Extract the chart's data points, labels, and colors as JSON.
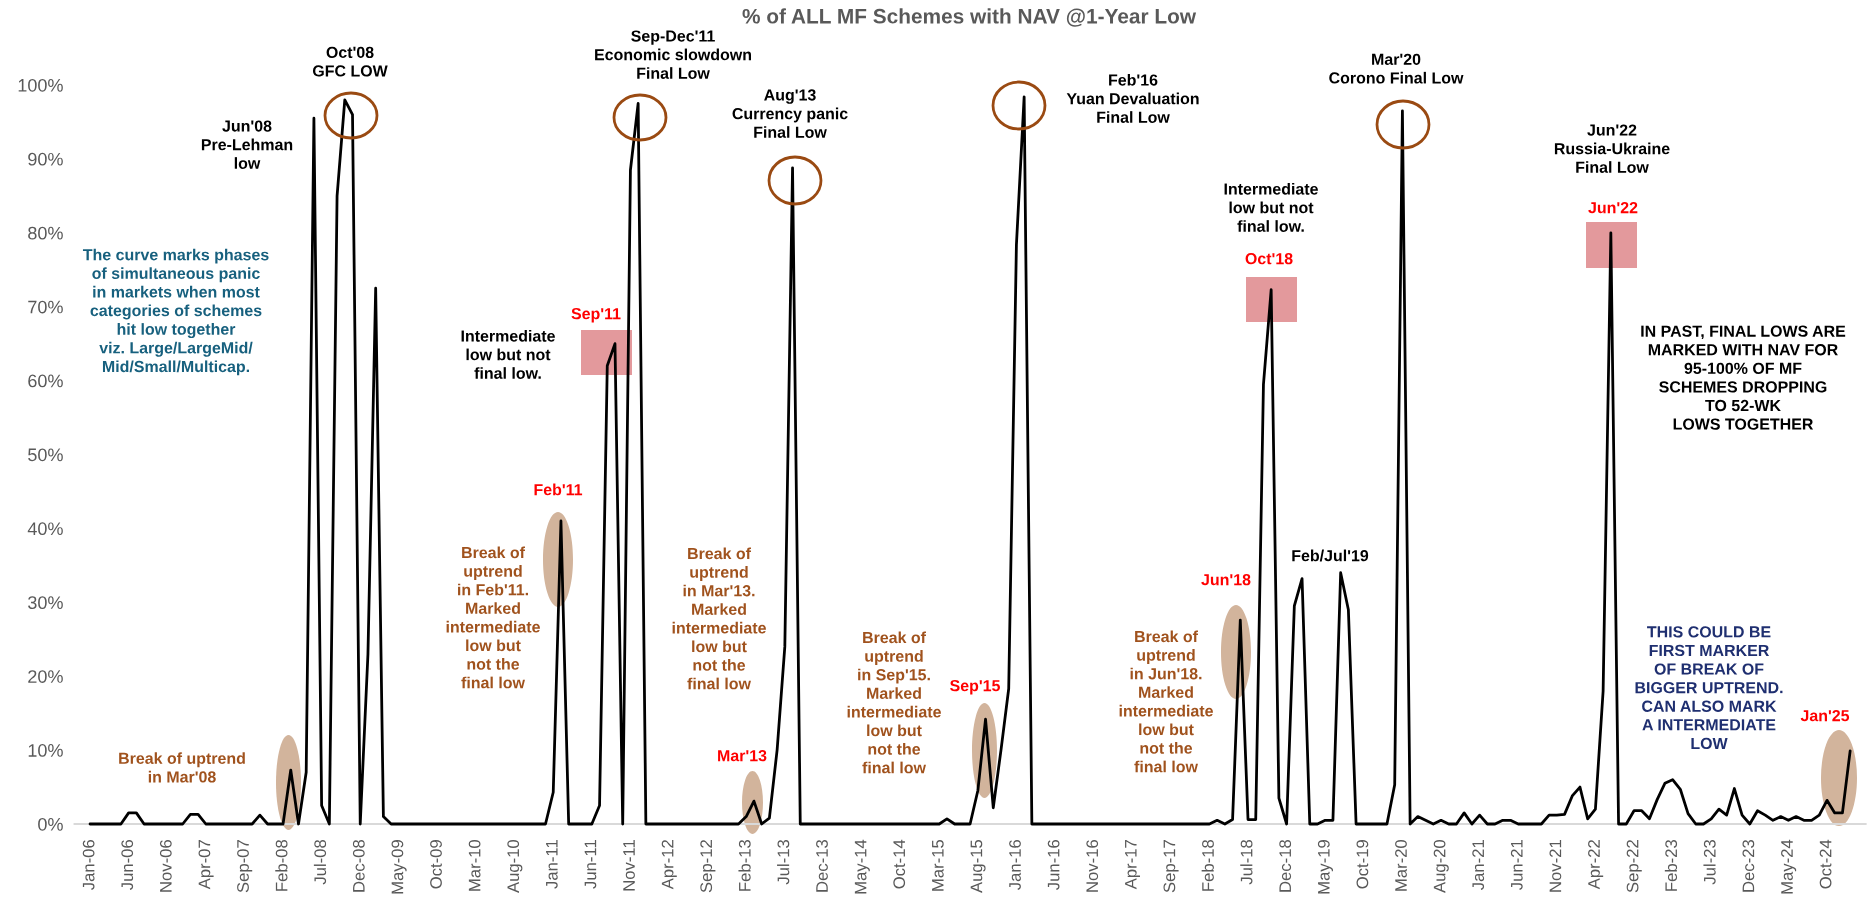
{
  "chart_data": {
    "type": "line",
    "title": "% of ALL MF Schemes with NAV @1-Year Low",
    "categories": [
      "Jan-06",
      null,
      null,
      null,
      null,
      "Jun-06",
      null,
      null,
      null,
      null,
      "Nov-06",
      null,
      null,
      null,
      null,
      "Apr-07",
      null,
      null,
      null,
      null,
      "Sep-07",
      null,
      null,
      null,
      null,
      "Feb-08",
      null,
      null,
      null,
      null,
      "Jul-08",
      null,
      null,
      null,
      null,
      "Dec-08",
      null,
      null,
      null,
      null,
      "May-09",
      null,
      null,
      null,
      null,
      "Oct-09",
      null,
      null,
      null,
      null,
      "Mar-10",
      null,
      null,
      null,
      null,
      "Aug-10",
      null,
      null,
      null,
      null,
      "Jan-11",
      null,
      null,
      null,
      null,
      "Jun-11",
      null,
      null,
      null,
      null,
      "Nov-11",
      null,
      null,
      null,
      null,
      "Apr-12",
      null,
      null,
      null,
      null,
      "Sep-12",
      null,
      null,
      null,
      null,
      "Feb-13",
      null,
      null,
      null,
      null,
      "Jul-13",
      null,
      null,
      null,
      null,
      "Dec-13",
      null,
      null,
      null,
      null,
      "May-14",
      null,
      null,
      null,
      null,
      "Oct-14",
      null,
      null,
      null,
      null,
      "Mar-15",
      null,
      null,
      null,
      null,
      "Aug-15",
      null,
      null,
      null,
      null,
      "Jan-16",
      null,
      null,
      null,
      null,
      "Jun-16",
      null,
      null,
      null,
      null,
      "Nov-16",
      null,
      null,
      null,
      null,
      "Apr-17",
      null,
      null,
      null,
      null,
      "Sep-17",
      null,
      null,
      null,
      null,
      "Feb-18",
      null,
      null,
      null,
      null,
      "Jul-18",
      null,
      null,
      null,
      null,
      "Dec-18",
      null,
      null,
      null,
      null,
      "May-19",
      null,
      null,
      null,
      null,
      "Oct-19",
      null,
      null,
      null,
      null,
      "Mar-20",
      null,
      null,
      null,
      null,
      "Aug-20",
      null,
      null,
      null,
      null,
      "Jan-21",
      null,
      null,
      null,
      null,
      "Jun-21",
      null,
      null,
      null,
      null,
      "Nov-21",
      null,
      null,
      null,
      null,
      "Apr-22",
      null,
      null,
      null,
      null,
      "Sep-22",
      null,
      null,
      null,
      null,
      "Feb-23",
      null,
      null,
      null,
      null,
      "Jul-23",
      null,
      null,
      null,
      null,
      "Dec-23",
      null,
      null,
      null,
      null,
      "May-24",
      null,
      null,
      null,
      null,
      "Oct-24",
      null,
      null,
      null
    ],
    "values": [
      0,
      0,
      0,
      0,
      0,
      1.5,
      1.5,
      0,
      0,
      0,
      0,
      0,
      0,
      1.3,
      1.3,
      0,
      0,
      0,
      0,
      0,
      0,
      0,
      1.2,
      0,
      0,
      0,
      7.3,
      0,
      7,
      95.5,
      2.5,
      0,
      85,
      98,
      96,
      0,
      23,
      72.5,
      1,
      0,
      0,
      0,
      0,
      0,
      0,
      0,
      0,
      0,
      0,
      0,
      0,
      0,
      0,
      0,
      0,
      0,
      0,
      0,
      0,
      0,
      4.3,
      41,
      0,
      0,
      0,
      0,
      2.5,
      62,
      65,
      0,
      88.5,
      97.5,
      0,
      0,
      0,
      0,
      0,
      0,
      0,
      0,
      0,
      0,
      0,
      0,
      0,
      1,
      3.1,
      0,
      0.8,
      10,
      24,
      88.8,
      0,
      0,
      0,
      0,
      0,
      0,
      0,
      0,
      0,
      0,
      0,
      0,
      0,
      0,
      0,
      0,
      0,
      0,
      0,
      0.7,
      0,
      0,
      0,
      4.5,
      14.2,
      2.2,
      10,
      18.3,
      78.4,
      98.4,
      0,
      0,
      0,
      0,
      0,
      0,
      0,
      0,
      0,
      0,
      0,
      0,
      0,
      0,
      0,
      0,
      0,
      0,
      0,
      0,
      0,
      0,
      0,
      0,
      0.5,
      0,
      0.6,
      27.6,
      0.6,
      0.6,
      59.5,
      72.3,
      3.5,
      0,
      29.5,
      33.2,
      0,
      0,
      0.5,
      0.5,
      34,
      29,
      0,
      0,
      0,
      0,
      0,
      5.3,
      96.5,
      0,
      1,
      0.5,
      0,
      0.5,
      0,
      0,
      1.5,
      0,
      1.2,
      0,
      0,
      0.5,
      0.5,
      0,
      0,
      0,
      0,
      1.2,
      1.2,
      1.3,
      3.8,
      5,
      0.7,
      2,
      18,
      80,
      0,
      0,
      1.8,
      1.8,
      0.7,
      3.3,
      5.5,
      6,
      4.7,
      1.4,
      0,
      0,
      0.7,
      2,
      1.2,
      4.8,
      1.2,
      0,
      1.8,
      1.2,
      0.5,
      1,
      0.5,
      1,
      0.5,
      0.5,
      1.2,
      3.2,
      1.5,
      1.5,
      9.9
    ],
    "color": "#000000",
    "marker": "none",
    "line_style": "solid",
    "ylim": [
      0,
      100
    ],
    "yticks": [
      {
        "value": 0,
        "label": "0%"
      },
      {
        "value": 10,
        "label": "10%"
      },
      {
        "value": 20,
        "label": "20%"
      },
      {
        "value": 30,
        "label": "30%"
      },
      {
        "value": 40,
        "label": "40%"
      },
      {
        "value": 50,
        "label": "50%"
      },
      {
        "value": 60,
        "label": "60%"
      },
      {
        "value": 70,
        "label": "70%"
      },
      {
        "value": 80,
        "label": "80%"
      },
      {
        "value": 90,
        "label": "90%"
      },
      {
        "value": 100,
        "label": "100%"
      }
    ],
    "annotations": [
      "Oct'08\nGFC LOW",
      "Jun'08\nPre-Lehman\nlow",
      "Sep-Dec'11\nEconomic slowdown\nFinal Low",
      "Aug'13\nCurrency panic\nFinal Low",
      "Feb'16\nYuan Devaluation\nFinal Low",
      "Mar'20\nCorono Final Low",
      "Jun'22\nRussia-Ukraine\nFinal Low",
      "The curve marks phases\nof simultaneous panic\nin markets when most\ncategories of schemes\nhit low together\nviz. Large/LargeMid/\nMid/Small/Multicap.",
      "Intermediate\nlow but not\nfinal low.",
      "Sep'11",
      "Intermediate\nlow but not\nfinal low.",
      "Oct'18",
      "Jun'22",
      "IN PAST, FINAL LOWS ARE\nMARKED WITH NAV FOR\n95-100% OF MF\nSCHEMES DROPPING\nTO 52-WK\nLOWS TOGETHER",
      "Feb'11",
      "Break of\nuptrend\nin Feb'11.\nMarked\nintermediate\nlow but\nnot the\nfinal low",
      "Break of\nuptrend\nin Mar'13.\nMarked\nintermediate\nlow but\nnot the\nfinal low",
      "Mar'13",
      "Break of\nuptrend\nin Sep'15.\nMarked\nintermediate\nlow but\nnot the\nfinal low",
      "Sep'15",
      "Jun'18",
      "Break of\nuptrend\nin Jun'18.\nMarked\nintermediate\nlow but\nnot the\nfinal low",
      "Feb/Jul'19",
      "THIS COULD BE\nFIRST MARKER\nOF BREAK OF\nBIGGER UPTREND.\nCAN ALSO MARK\nA INTERMEDIATE\nLOW",
      "Jan'25",
      "Break of uptrend\nin Mar'08"
    ]
  }
}
